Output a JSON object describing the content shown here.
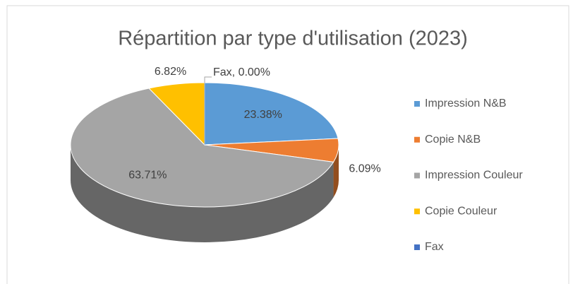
{
  "chart_data": {
    "type": "pie",
    "title": "Répartition par type d'utilisation (2023)",
    "categories": [
      "Impression N&B",
      "Copie N&B",
      "Impression Couleur",
      "Copie Couleur",
      "Fax"
    ],
    "values": [
      23.38,
      6.09,
      63.71,
      6.82,
      0.0
    ],
    "value_labels": [
      "23.38%",
      "6.09%",
      "63.71%",
      "6.82%",
      "Fax, 0.00%"
    ],
    "colors": [
      "#5b9bd5",
      "#ed7d31",
      "#a5a5a5",
      "#ffc000",
      "#4472c4"
    ],
    "legend": "right"
  }
}
